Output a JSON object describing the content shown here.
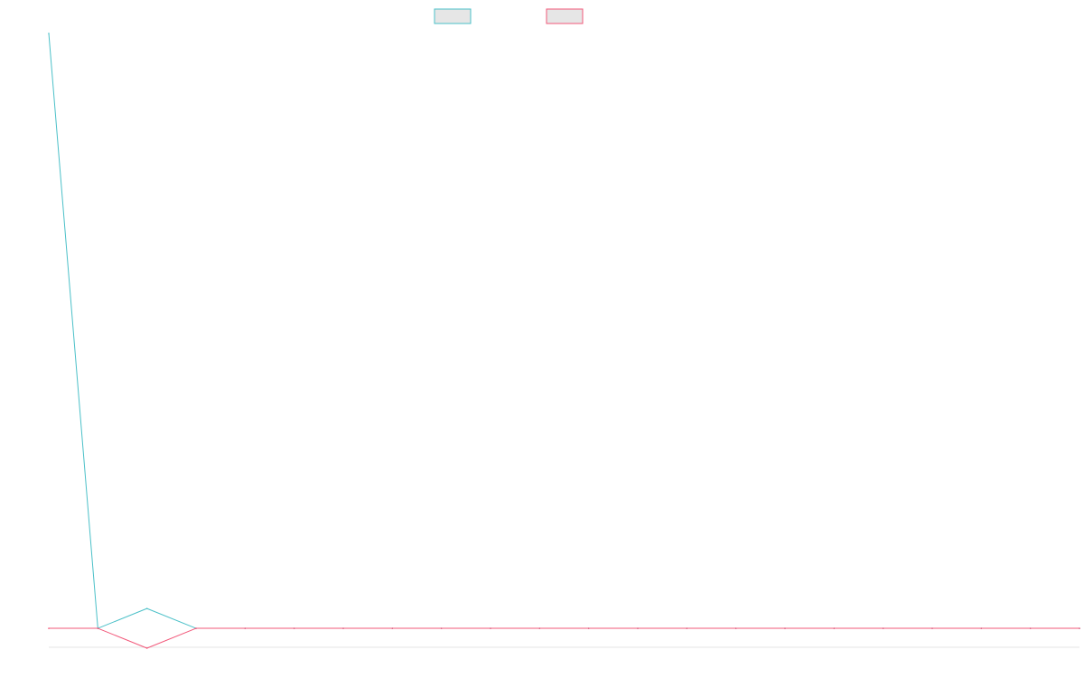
{
  "chart_data": {
    "type": "line",
    "title": "",
    "xlabel": "",
    "ylabel": "",
    "legend": {
      "placement": "top-center",
      "entries": [
        "",
        ""
      ]
    },
    "grid": false,
    "x": [
      0,
      1,
      2,
      3,
      4,
      5,
      6,
      7,
      8,
      9,
      10,
      11,
      12,
      13,
      14,
      15,
      16,
      17,
      18,
      19,
      20,
      21
    ],
    "xlim": [
      0,
      21
    ],
    "ylim": [
      -1,
      30
    ],
    "series": [
      {
        "color": "#4bc0c8",
        "values": [
          30,
          0,
          1,
          0,
          0,
          0,
          0,
          0,
          0,
          0,
          0,
          0,
          0,
          0,
          0,
          0,
          0,
          0,
          0,
          0,
          0,
          0
        ]
      },
      {
        "color": "#f2587a",
        "values": [
          0,
          0,
          -1,
          0,
          0,
          0,
          0,
          0,
          0,
          0,
          0,
          0,
          0,
          0,
          0,
          0,
          0,
          0,
          0,
          0,
          0,
          0
        ]
      }
    ]
  }
}
